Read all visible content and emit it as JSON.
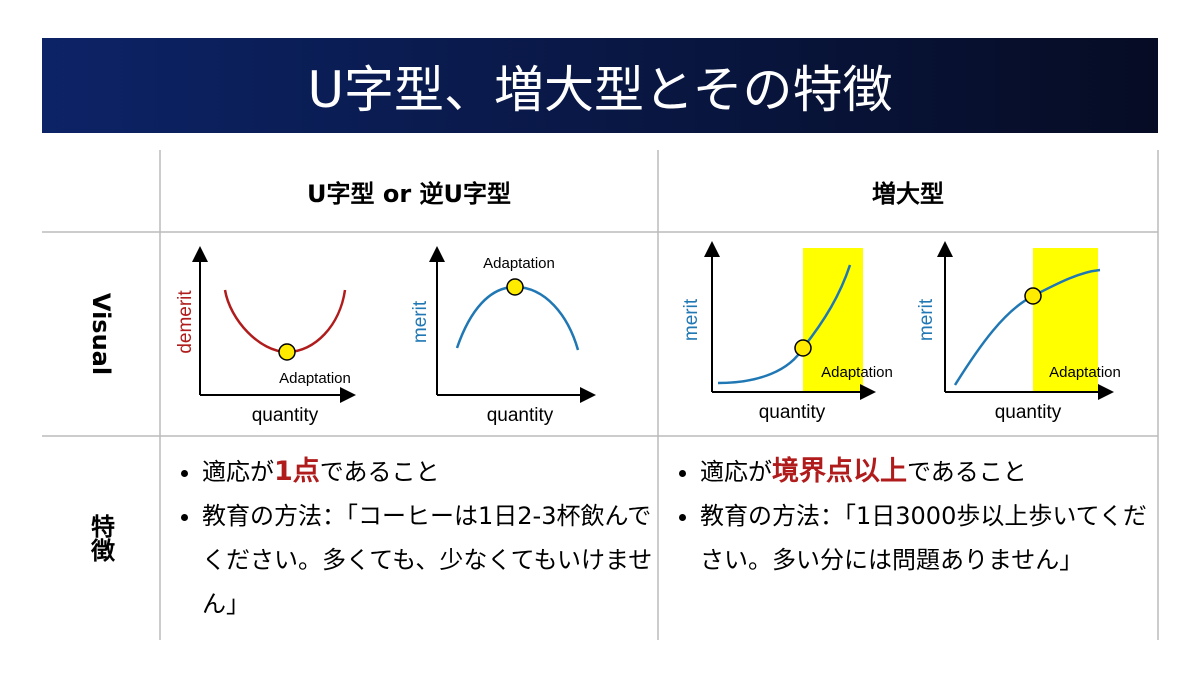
{
  "title": "U字型、増大型とその特徴",
  "table": {
    "headers": [
      "U字型 or 逆U字型",
      "増大型"
    ],
    "row_labels": [
      "Visual",
      "特徴"
    ],
    "visuals": [
      {
        "y_label": "demerit",
        "x_label": "quantity",
        "point_label": "Adaptation"
      },
      {
        "y_label": "merit",
        "x_label": "quantity",
        "point_label": "Adaptation"
      },
      {
        "y_label": "merit",
        "x_label": "quantity",
        "point_label": "Adaptation"
      },
      {
        "y_label": "merit",
        "x_label": "quantity",
        "point_label": "Adaptation"
      }
    ],
    "features": [
      [
        [
          "適応が",
          "1点",
          "であること"
        ],
        [
          "教育の方法：「コーヒーは1日2-3杯飲んでください。多くても、少なくてもいけません」"
        ]
      ],
      [
        [
          "適応が",
          "境界点以上",
          "であること"
        ],
        [
          "教育の方法：「1日3000歩以上歩いてください。多い分には問題ありません」"
        ]
      ]
    ]
  }
}
